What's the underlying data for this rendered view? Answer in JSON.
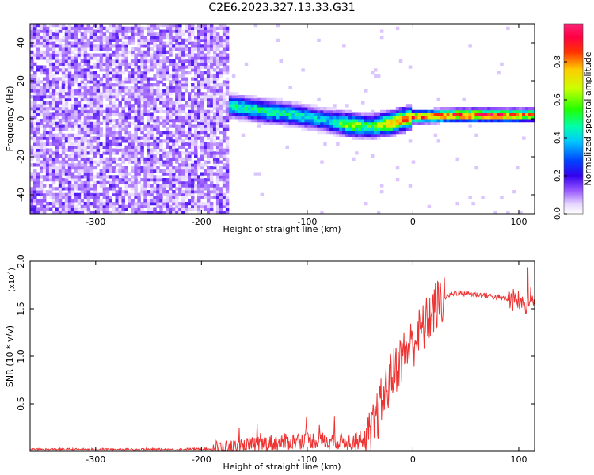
{
  "figure": {
    "title": "C2E6.2023.327.13.33.G31"
  },
  "chart_data": [
    {
      "type": "heatmap",
      "xlabel": "Height of straight line (km)",
      "ylabel": "Frequency (Hz)",
      "xlim": [
        -362,
        115
      ],
      "ylim": [
        -50,
        50
      ],
      "xticks": [
        -300,
        -200,
        -100,
        0,
        100
      ],
      "yticks": [
        -40,
        -20,
        0,
        20,
        40
      ],
      "colorbar": {
        "label": "Normalized spectral amplitude",
        "range": [
          0,
          1
        ],
        "ticks": [
          0.0,
          0.2,
          0.4,
          0.6,
          0.8
        ],
        "colormap": "rainbow (purple-blue-cyan-green-yellow-orange-red-magenta)"
      },
      "noise_region_x": [
        -362,
        -175
      ],
      "signal_ridge": {
        "x": [
          -180,
          -160,
          -140,
          -120,
          -100,
          -80,
          -60,
          -40,
          -20,
          0,
          20,
          40,
          60,
          80,
          100,
          115
        ],
        "freq": [
          7,
          6,
          4,
          3,
          1,
          -1,
          -3,
          -4,
          -2,
          1,
          1.5,
          2,
          2,
          2,
          2,
          2
        ],
        "peak_amplitude": [
          0.45,
          0.5,
          0.5,
          0.5,
          0.45,
          0.4,
          0.7,
          0.55,
          0.85,
          0.85,
          0.9,
          0.95,
          0.95,
          0.95,
          0.85,
          0.8
        ]
      }
    },
    {
      "type": "line",
      "xlabel": "Height of straight line (km)",
      "ylabel": "SNR (10 * v/v)",
      "y_multiplier": "(x10",
      "y_multiplier_exp": "4",
      "y_multiplier_close": ")",
      "xlim": [
        -362,
        115
      ],
      "ylim": [
        0,
        2.0
      ],
      "xticks": [
        -300,
        -200,
        -100,
        0,
        100
      ],
      "yticks": [
        0.5,
        1.0,
        1.5,
        2.0
      ],
      "series": [
        {
          "color": "#ee3333",
          "x": [
            -362,
            -340,
            -300,
            -260,
            -220,
            -180,
            -160,
            -140,
            -120,
            -100,
            -80,
            -60,
            -50,
            -40,
            -30,
            -20,
            -10,
            0,
            10,
            20,
            30,
            40,
            50,
            60,
            70,
            80,
            90,
            100,
            105,
            110,
            115
          ],
          "y": [
            0.02,
            0.02,
            0.02,
            0.02,
            0.02,
            0.03,
            0.05,
            0.08,
            0.1,
            0.12,
            0.11,
            0.1,
            0.1,
            0.15,
            0.5,
            0.8,
            1.0,
            1.15,
            1.3,
            1.5,
            1.62,
            1.67,
            1.66,
            1.65,
            1.64,
            1.62,
            1.6,
            1.58,
            1.55,
            1.55,
            1.6
          ]
        }
      ]
    }
  ]
}
